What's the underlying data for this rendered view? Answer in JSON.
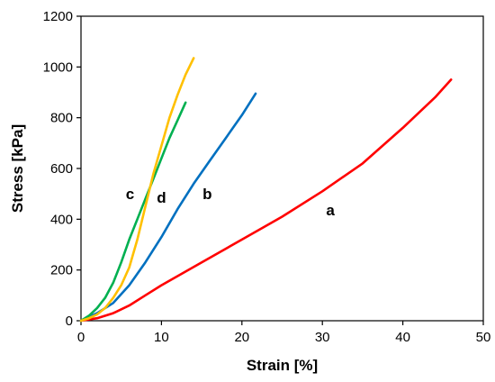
{
  "chart_data": {
    "type": "line",
    "xlabel": "Strain [%]",
    "ylabel": "Stress [kPa]",
    "xlim": [
      0,
      50
    ],
    "ylim": [
      0,
      1200
    ],
    "xticks": [
      "0",
      "10",
      "20",
      "30",
      "40",
      "50"
    ],
    "yticks": [
      "0",
      "200",
      "400",
      "600",
      "800",
      "1000",
      "1200"
    ],
    "grid": false,
    "legend": "none",
    "series": [
      {
        "name": "a",
        "color": "#ff0000",
        "x": [
          0,
          2,
          4,
          6,
          8,
          10,
          15,
          20,
          25,
          30,
          35,
          40,
          44,
          46
        ],
        "y": [
          0,
          10,
          30,
          60,
          100,
          140,
          230,
          320,
          410,
          510,
          620,
          760,
          880,
          950
        ]
      },
      {
        "name": "b",
        "color": "#0070c0",
        "x": [
          0,
          2,
          4,
          6,
          8,
          10,
          12,
          14,
          16,
          18,
          20,
          21.7
        ],
        "y": [
          0,
          30,
          70,
          140,
          230,
          330,
          440,
          540,
          630,
          720,
          810,
          895
        ]
      },
      {
        "name": "c",
        "color": "#00b050",
        "x": [
          0,
          1,
          2,
          3,
          4,
          5,
          6,
          7,
          8,
          9,
          10,
          11,
          12,
          13
        ],
        "y": [
          0,
          20,
          50,
          90,
          150,
          230,
          320,
          400,
          480,
          560,
          640,
          720,
          790,
          860
        ]
      },
      {
        "name": "d",
        "color": "#ffc000",
        "x": [
          0,
          1,
          2,
          3,
          4,
          5,
          6,
          7,
          8,
          9,
          10,
          11,
          12,
          13,
          14
        ],
        "y": [
          0,
          10,
          25,
          50,
          90,
          140,
          210,
          320,
          450,
          580,
          690,
          800,
          890,
          970,
          1035
        ]
      }
    ],
    "labels": [
      {
        "text": "a",
        "x": 31,
        "y": 415
      },
      {
        "text": "b",
        "x": 15.7,
        "y": 480
      },
      {
        "text": "c",
        "x": 6.1,
        "y": 480
      },
      {
        "text": "d",
        "x": 10,
        "y": 465
      }
    ]
  }
}
